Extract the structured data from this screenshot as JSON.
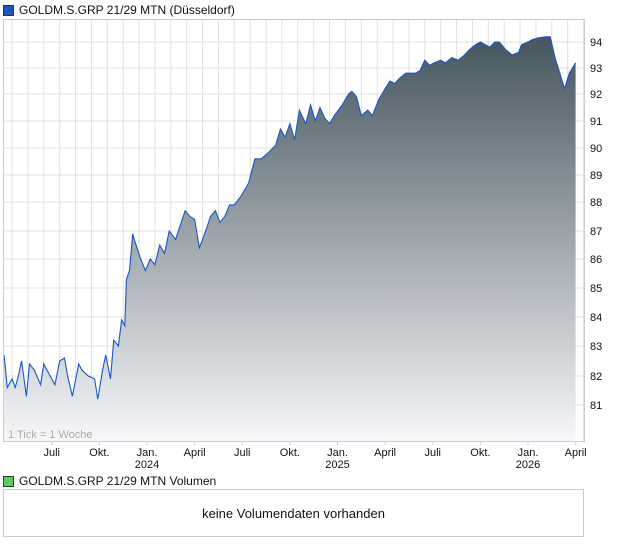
{
  "legend_main": "GOLDM.S.GRP 21/29 MTN (Düsseldorf)",
  "legend_volume": "GOLDM.S.GRP 21/29 MTN Volumen",
  "volume_message": "keine Volumendaten vorhanden",
  "colors": {
    "line": "#1a56c4",
    "fill_top": "#46555f",
    "fill_bottom": "#f6f7f9",
    "volume": "#5ecb5e"
  },
  "chart_data": {
    "type": "area",
    "title": "GOLDM.S.GRP 21/29 MTN (Düsseldorf)",
    "tick_note": "1 Tick = 1 Woche",
    "x_unit": "months since Jan 2024",
    "yticks": [
      "81",
      "82",
      "83",
      "84",
      "85",
      "86",
      "87",
      "88",
      "89",
      "90",
      "91",
      "92",
      "93",
      "94"
    ],
    "xticks": [
      {
        "label": "Juli",
        "m": -6
      },
      {
        "label": "Okt.",
        "m": -3
      },
      {
        "label": "Jan.",
        "year": "2024",
        "m": 0
      },
      {
        "label": "April",
        "m": 3
      },
      {
        "label": "Juli",
        "m": 6
      },
      {
        "label": "Okt.",
        "m": 9
      },
      {
        "label": "Jan.",
        "year": "2025",
        "m": 12
      },
      {
        "label": "April",
        "m": 15
      },
      {
        "label": "Juli",
        "m": 18
      },
      {
        "label": "Okt.",
        "m": 21
      },
      {
        "label": "Jan.",
        "year": "2026",
        "m": 24
      },
      {
        "label": "April",
        "m": 27
      }
    ],
    "x": [
      -9.0,
      -8.8,
      -8.5,
      -8.3,
      -8.1,
      -7.9,
      -7.6,
      -7.4,
      -7.1,
      -6.7,
      -6.5,
      -6.1,
      -5.8,
      -5.5,
      -5.2,
      -5.0,
      -4.7,
      -4.3,
      -4.1,
      -3.7,
      -3.3,
      -3.1,
      -2.8,
      -2.6,
      -2.3,
      -2.1,
      -1.8,
      -1.6,
      -1.4,
      -1.3,
      -1.1,
      -0.9,
      -0.8,
      -0.4,
      -0.1,
      0.2,
      0.5,
      0.8,
      1.1,
      1.4,
      1.8,
      2.1,
      2.4,
      2.7,
      3.0,
      3.3,
      3.7,
      4.0,
      4.3,
      4.6,
      4.9,
      5.2,
      5.5,
      5.9,
      6.4,
      6.8,
      7.2,
      7.6,
      8.1,
      8.4,
      8.7,
      9.0,
      9.3,
      9.6,
      10.0,
      10.3,
      10.6,
      10.9,
      11.2,
      11.5,
      11.8,
      12.3,
      12.7,
      12.9,
      13.2,
      13.5,
      13.9,
      14.2,
      14.6,
      15.0,
      15.3,
      15.6,
      15.9,
      16.3,
      16.6,
      16.9,
      17.2,
      17.5,
      17.8,
      18.1,
      18.5,
      18.8,
      19.2,
      19.6,
      20.0,
      20.3,
      20.7,
      21.0,
      21.3,
      21.6,
      21.9,
      22.2,
      22.6,
      23.0,
      23.4,
      23.6,
      24.0,
      24.3,
      24.6,
      25.1,
      25.4,
      25.7,
      26.0,
      26.3,
      26.6,
      27.0
    ],
    "values": [
      82.7,
      81.6,
      81.9,
      81.6,
      82.0,
      82.5,
      81.3,
      82.4,
      82.2,
      81.7,
      82.4,
      82.0,
      81.7,
      82.5,
      82.6,
      82.0,
      81.3,
      82.4,
      82.2,
      82.0,
      81.9,
      81.2,
      82.2,
      82.7,
      81.9,
      83.2,
      83.0,
      83.9,
      83.7,
      85.3,
      85.6,
      86.9,
      86.7,
      86.0,
      85.6,
      86.0,
      85.8,
      86.5,
      86.2,
      87.0,
      86.7,
      87.2,
      87.7,
      87.5,
      87.4,
      86.4,
      87.0,
      87.5,
      87.7,
      87.3,
      87.5,
      87.9,
      87.9,
      88.2,
      88.7,
      89.6,
      89.6,
      89.8,
      90.1,
      90.7,
      90.4,
      90.9,
      90.3,
      91.4,
      90.9,
      91.6,
      91.0,
      91.5,
      91.1,
      90.9,
      91.2,
      91.6,
      92.0,
      92.1,
      91.9,
      91.2,
      91.4,
      91.2,
      91.8,
      92.2,
      92.5,
      92.4,
      92.6,
      92.8,
      92.8,
      92.8,
      92.9,
      93.3,
      93.1,
      93.2,
      93.3,
      93.2,
      93.4,
      93.3,
      93.5,
      93.7,
      93.9,
      94.0,
      93.9,
      93.8,
      94.0,
      94.0,
      93.7,
      93.5,
      93.6,
      93.9,
      94.0,
      94.1,
      94.15,
      94.2,
      94.2,
      93.4,
      92.8,
      92.2,
      92.8,
      93.2
    ],
    "grid": true,
    "legend": "top-left"
  }
}
